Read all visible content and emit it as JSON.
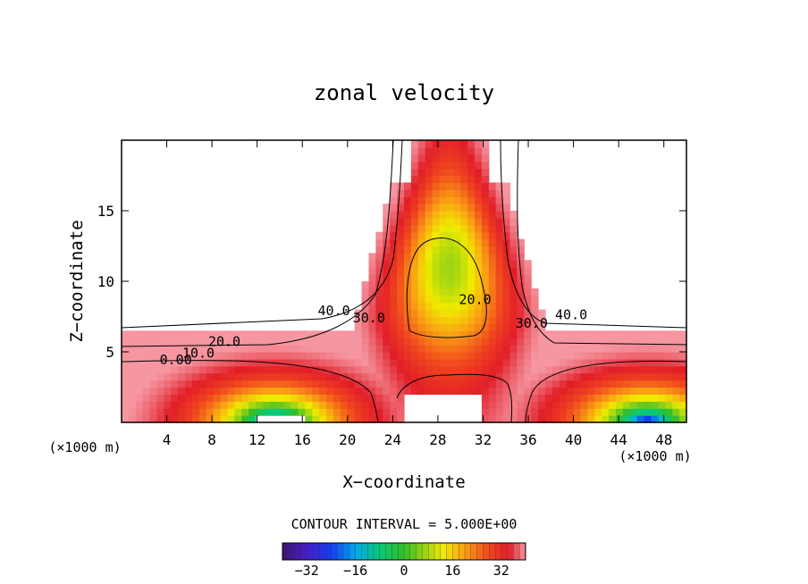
{
  "chart_data": {
    "type": "contour",
    "title": "zonal velocity",
    "xlabel": "X−coordinate",
    "ylabel": "Z−coordinate",
    "x_unit_left": "(×1000 m)",
    "x_unit_right": "(×1000 m)",
    "xlim": [
      0,
      50
    ],
    "ylim": [
      0,
      20
    ],
    "x_ticks": [
      4,
      8,
      12,
      16,
      20,
      24,
      28,
      32,
      36,
      40,
      44,
      48
    ],
    "y_ticks": [
      5,
      10,
      15
    ],
    "contour_labels": [
      {
        "text": "40.0",
        "x": 18.8,
        "z": 7.6
      },
      {
        "text": "30.0",
        "x": 21.9,
        "z": 7.1
      },
      {
        "text": "20.0",
        "x": 31.3,
        "z": 8.4
      },
      {
        "text": "30.0",
        "x": 36.3,
        "z": 6.7
      },
      {
        "text": "40.0",
        "x": 39.8,
        "z": 7.3
      },
      {
        "text": "20.0",
        "x": 9.1,
        "z": 5.4
      },
      {
        "text": "10.0",
        "x": 6.8,
        "z": 4.6
      },
      {
        "text": "0.00",
        "x": 4.8,
        "z": 4.1
      }
    ],
    "contour_interval_label": "CONTOUR INTERVAL = 5.000E+00",
    "colorbar": {
      "ticks": [
        -32,
        -16,
        0,
        16,
        32
      ],
      "tick_labels": [
        "−32",
        "−16",
        "0",
        "16",
        "32"
      ],
      "range": [
        -40,
        40
      ]
    },
    "colors": {
      "low": "#3a1a9a",
      "zero": "#2fbf3f",
      "high": "#e8242c",
      "peak": "#fff200"
    }
  }
}
